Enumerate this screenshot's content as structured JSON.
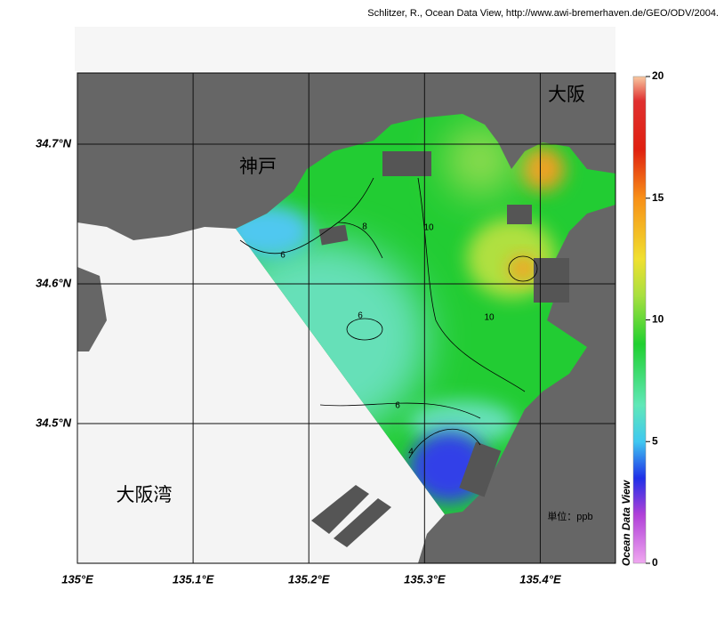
{
  "credit": "Schlitzer, R., Ocean Data View, http://www.awi-bremerhaven.de/GEO/ODV/2004.",
  "map": {
    "xlim": [
      135.0,
      135.465
    ],
    "ylim": [
      34.4,
      34.751
    ],
    "xticks": [
      {
        "value": 135.0,
        "label": "135°E"
      },
      {
        "value": 135.1,
        "label": "135.1°E"
      },
      {
        "value": 135.2,
        "label": "135.2°E"
      },
      {
        "value": 135.3,
        "label": "135.3°E"
      },
      {
        "value": 135.4,
        "label": "135.4°E"
      }
    ],
    "yticks": [
      {
        "value": 34.5,
        "label": "34.5°N"
      },
      {
        "value": 34.6,
        "label": "34.6°N"
      },
      {
        "value": 34.7,
        "label": "34.7°N"
      }
    ],
    "grid": true,
    "place_labels": [
      "神戸",
      "大阪",
      "大阪湾"
    ],
    "unit_label": "単位：ppb",
    "contour_labels": [
      6,
      8,
      10,
      6,
      10,
      6,
      4
    ],
    "colorbar": {
      "title": "Ocean Data View",
      "lim": [
        0,
        20
      ],
      "ticks": [
        0,
        5,
        10,
        15,
        20
      ],
      "colormap": [
        {
          "value": 0,
          "color": "#f0a8f0"
        },
        {
          "value": 2,
          "color": "#b040d8"
        },
        {
          "value": 3.5,
          "color": "#2030e8"
        },
        {
          "value": 5,
          "color": "#40c8f0"
        },
        {
          "value": 6.5,
          "color": "#60e8b8"
        },
        {
          "value": 9,
          "color": "#20d030"
        },
        {
          "value": 11,
          "color": "#a8e040"
        },
        {
          "value": 12.5,
          "color": "#f0e030"
        },
        {
          "value": 15,
          "color": "#f89018"
        },
        {
          "value": 17,
          "color": "#e02010"
        },
        {
          "value": 19,
          "color": "#e03030"
        },
        {
          "value": 20,
          "color": "#f8c8a0"
        }
      ]
    }
  }
}
